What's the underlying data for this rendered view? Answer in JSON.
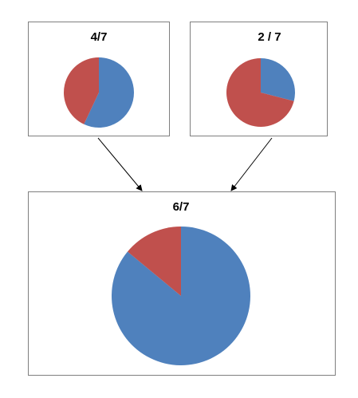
{
  "chart_data": [
    {
      "type": "pie",
      "title": "4/7",
      "values": [
        57,
        43
      ],
      "colors": [
        "#4f81bd",
        "#c0504d"
      ]
    },
    {
      "type": "pie",
      "title": "2 / 7",
      "values": [
        29,
        71
      ],
      "colors": [
        "#4f81bd",
        "#c0504d"
      ]
    },
    {
      "type": "pie",
      "title": "6/7",
      "values": [
        86,
        14
      ],
      "colors": [
        "#4f81bd",
        "#c0504d"
      ]
    }
  ]
}
